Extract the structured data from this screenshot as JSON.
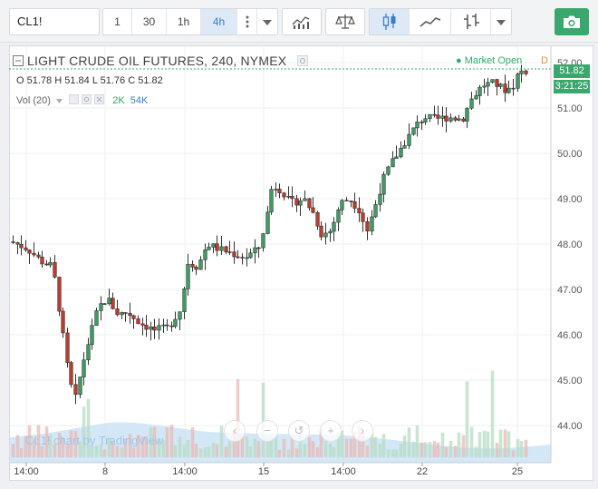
{
  "toolbar": {
    "symbol": "CL1!",
    "intervals": [
      "1",
      "30",
      "1h",
      "4h"
    ],
    "active_interval": "4h"
  },
  "legend": {
    "title": "LIGHT CRUDE OIL FUTURES, 240, NYMEX",
    "ohlc": {
      "O": "51.78",
      "H": "51.84",
      "L": "51.76",
      "C": "51.82"
    },
    "vol_label": "Vol (20)",
    "vol_values": [
      "2K",
      "54K"
    ],
    "market_status": "Market Open",
    "market_flag": "D"
  },
  "price_tag": "51.82",
  "time_tag": "3:21:25",
  "watermark": "CL1! chart by TradingView",
  "colors": {
    "up": "#3a9e63",
    "down": "#c0392b",
    "accent": "#3b7ec8",
    "market": "#3aa76d"
  },
  "icons": [
    "menu-dots-icon",
    "chevron-down-icon",
    "indicators-icon",
    "compare-icon",
    "candles-icon",
    "line-chart-icon",
    "bar-chart-icon",
    "camera-icon",
    "scroll-left-icon",
    "zoom-out-icon",
    "reset-icon",
    "zoom-in-icon",
    "scroll-right-icon"
  ],
  "chart_data": {
    "type": "candlestick",
    "y_ticks": [
      "52.00",
      "51.00",
      "50.00",
      "49.00",
      "48.00",
      "47.00",
      "46.00",
      "45.00",
      "44.00"
    ],
    "x_ticks": [
      "14:00",
      "8",
      "14:00",
      "15",
      "14:00",
      "22",
      "25"
    ],
    "ylim": [
      43.3,
      52.2
    ]
  }
}
